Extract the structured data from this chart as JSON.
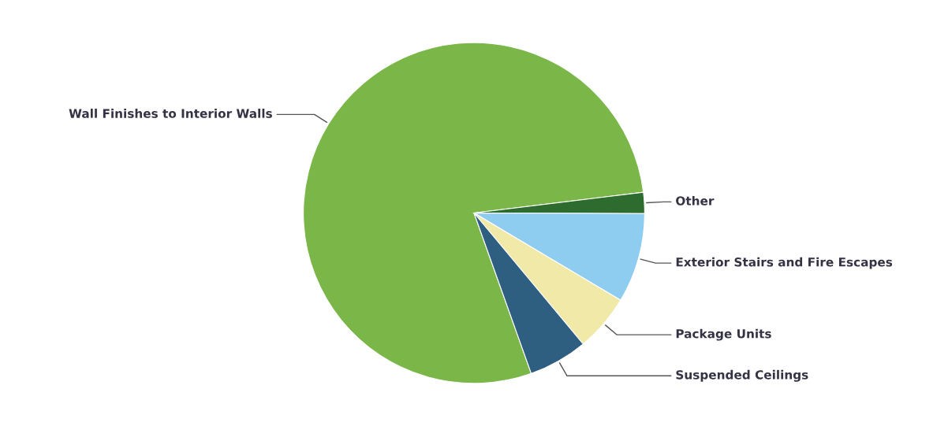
{
  "chart_data": {
    "type": "pie",
    "categories": [
      "Wall Finishes to Interior Walls",
      "Other",
      "Exterior Stairs and Fire Escapes",
      "Package Units",
      "Suspended Ceilings"
    ],
    "values": [
      78.5,
      2,
      8.5,
      5.4,
      5.6
    ],
    "colors": [
      "#7ab648",
      "#2e6b2e",
      "#8ecdf0",
      "#f1e9a8",
      "#2f5f80"
    ]
  }
}
